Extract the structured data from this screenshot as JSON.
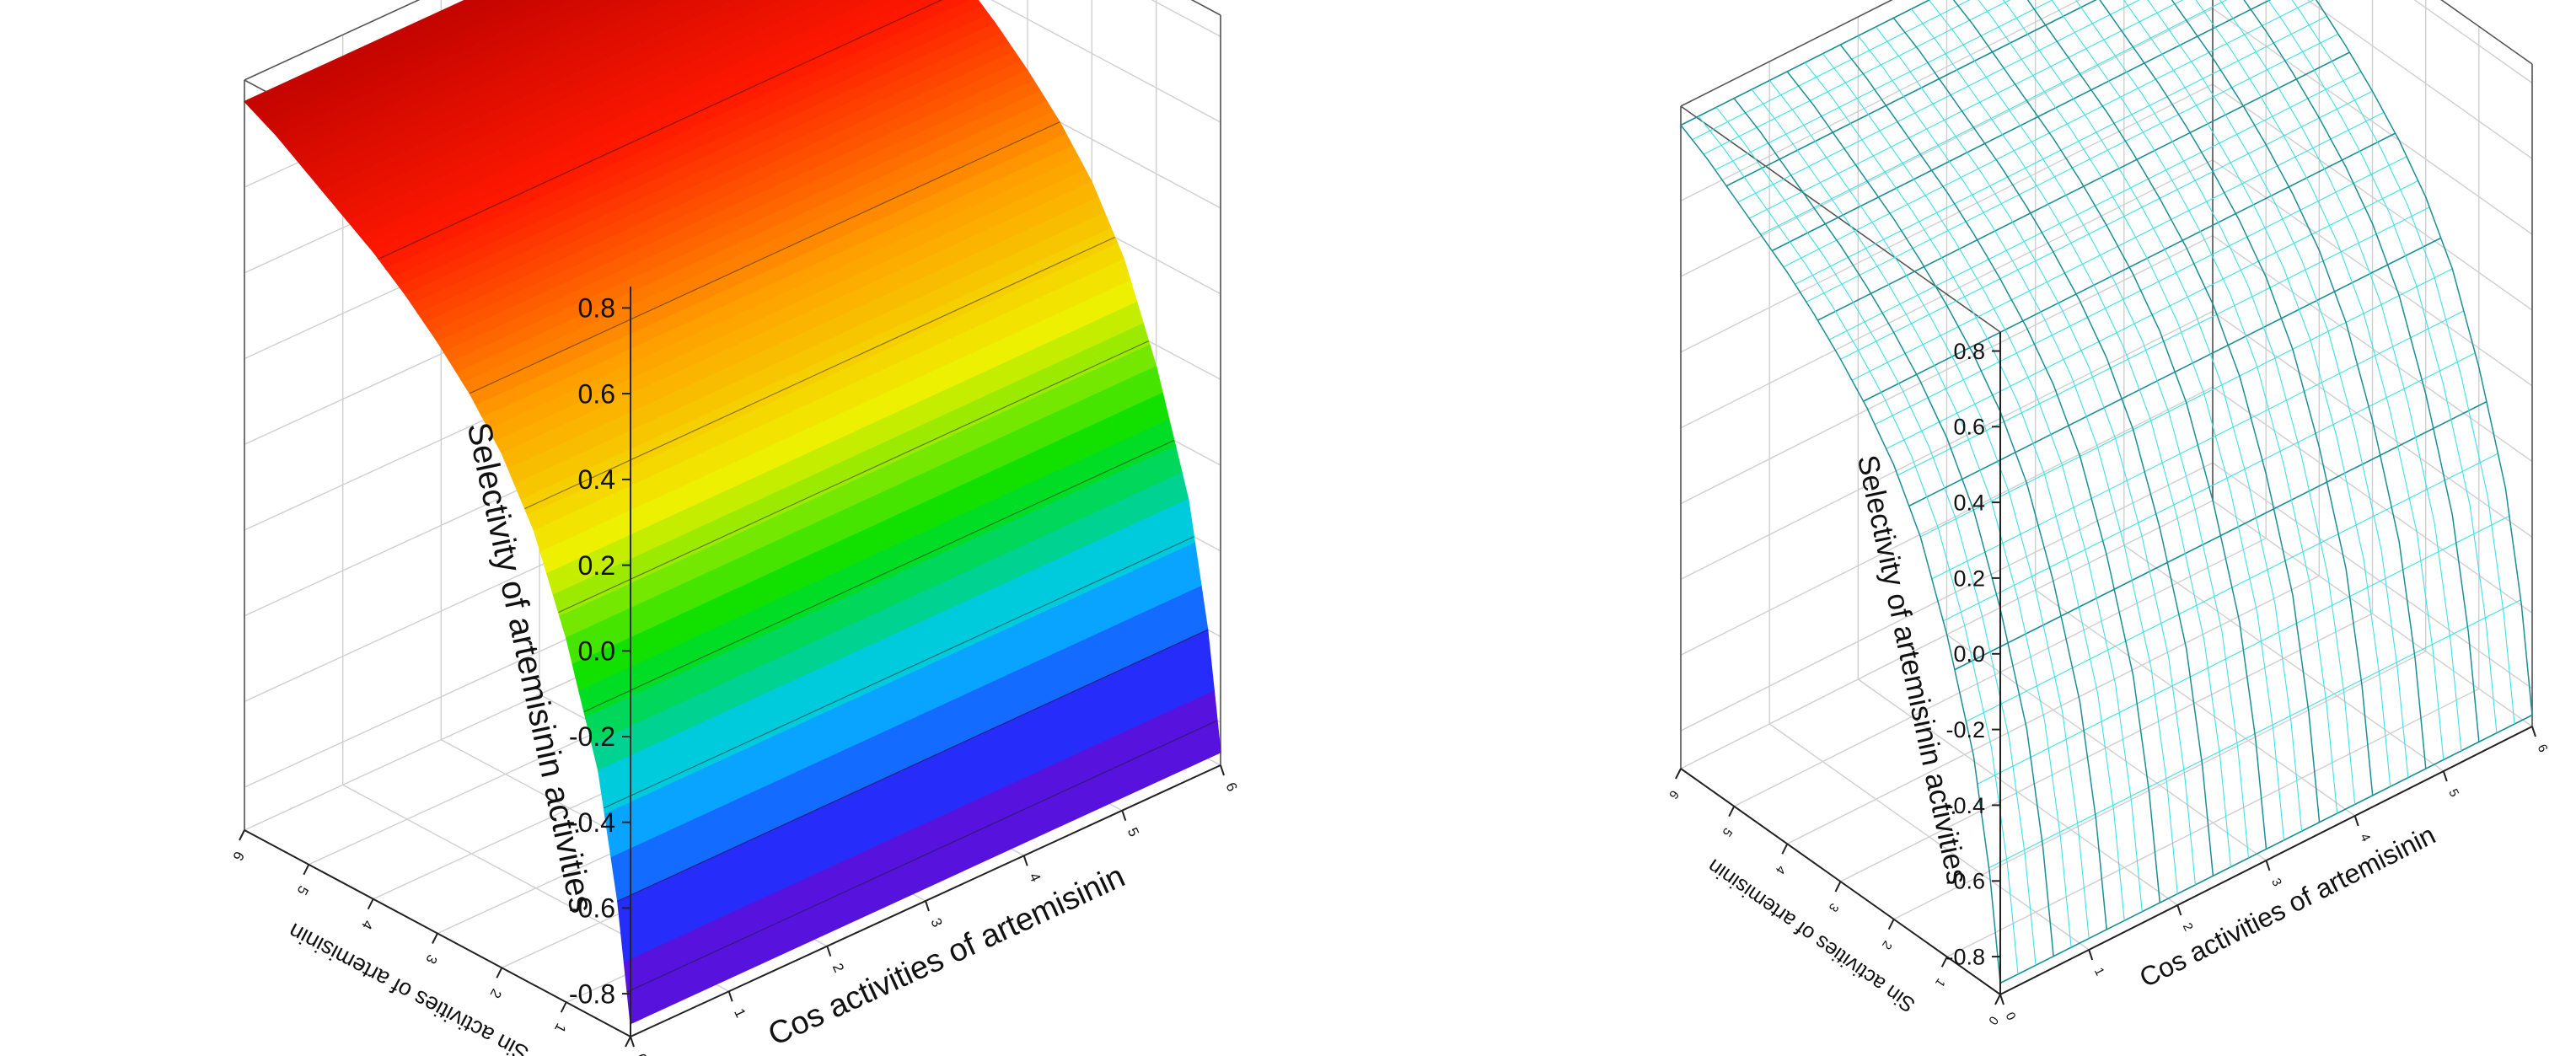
{
  "chart_data": [
    {
      "type": "surface",
      "render_style": "filled rainbow color map",
      "zlabel": "Selectivity of artemisinin activities",
      "xlabel": "Cos activities of artemisinin",
      "ylabel": "Sin activities of artemisinin",
      "zlim": [
        -0.9,
        0.85
      ],
      "xlim": [
        0,
        6
      ],
      "ylim": [
        0,
        6
      ],
      "z_ticks": [
        "0.8",
        "0.6",
        "0.4",
        "0.2",
        "0.0",
        "-0.2",
        "-0.4",
        "-0.6",
        "-0.8"
      ],
      "x_ticks": [
        "0",
        "1",
        "2",
        "3",
        "4",
        "5",
        "6"
      ],
      "y_ticks": [
        "0",
        "1",
        "2",
        "3",
        "4",
        "5",
        "6"
      ],
      "grid": true,
      "surface_profile": {
        "description_x": "surface is constant along Cos axis; curves only along Sin axis",
        "sin_values": [
          0.0,
          0.2,
          0.5,
          1.0,
          1.5,
          2.0,
          2.5,
          3.0,
          3.5,
          4.0,
          4.5,
          5.0,
          5.5,
          6.0
        ],
        "selectivity_values": [
          -0.87,
          -0.6,
          -0.32,
          -0.05,
          0.16,
          0.3,
          0.4,
          0.48,
          0.55,
          0.61,
          0.66,
          0.71,
          0.76,
          0.8
        ]
      },
      "colors": [
        "#7a00c8",
        "#2030ff",
        "#00c8ff",
        "#00e000",
        "#f0f000",
        "#ffa000",
        "#ff1800",
        "#b40000"
      ]
    },
    {
      "type": "surface",
      "render_style": "cyan wireframe mesh",
      "zlabel": "Selectivity of artemisinin activities",
      "xlabel": "Cos activities of artemisinin",
      "ylabel": "Sin activities of artemisinin",
      "zlim": [
        -0.9,
        0.85
      ],
      "xlim": [
        0,
        6
      ],
      "ylim": [
        0,
        6
      ],
      "z_ticks": [
        "0.8",
        "0.6",
        "0.4",
        "0.2",
        "0.0",
        "-0.2",
        "-0.4",
        "-0.6",
        "-0.8"
      ],
      "x_ticks": [
        "0",
        "1",
        "2",
        "3",
        "4",
        "5",
        "6"
      ],
      "y_ticks": [
        "0",
        "1",
        "2",
        "3",
        "4",
        "5",
        "6"
      ],
      "grid": true,
      "surface_profile": {
        "description_x": "surface is constant along Cos axis; curves only along Sin axis",
        "sin_values": [
          0.0,
          0.2,
          0.5,
          1.0,
          1.5,
          2.0,
          2.5,
          3.0,
          3.5,
          4.0,
          4.5,
          5.0,
          5.5,
          6.0
        ],
        "selectivity_values": [
          -0.87,
          -0.6,
          -0.32,
          -0.05,
          0.16,
          0.3,
          0.4,
          0.48,
          0.55,
          0.61,
          0.66,
          0.71,
          0.76,
          0.8
        ]
      },
      "colors": [
        "#3fe0e8",
        "#1a8f96"
      ]
    }
  ]
}
